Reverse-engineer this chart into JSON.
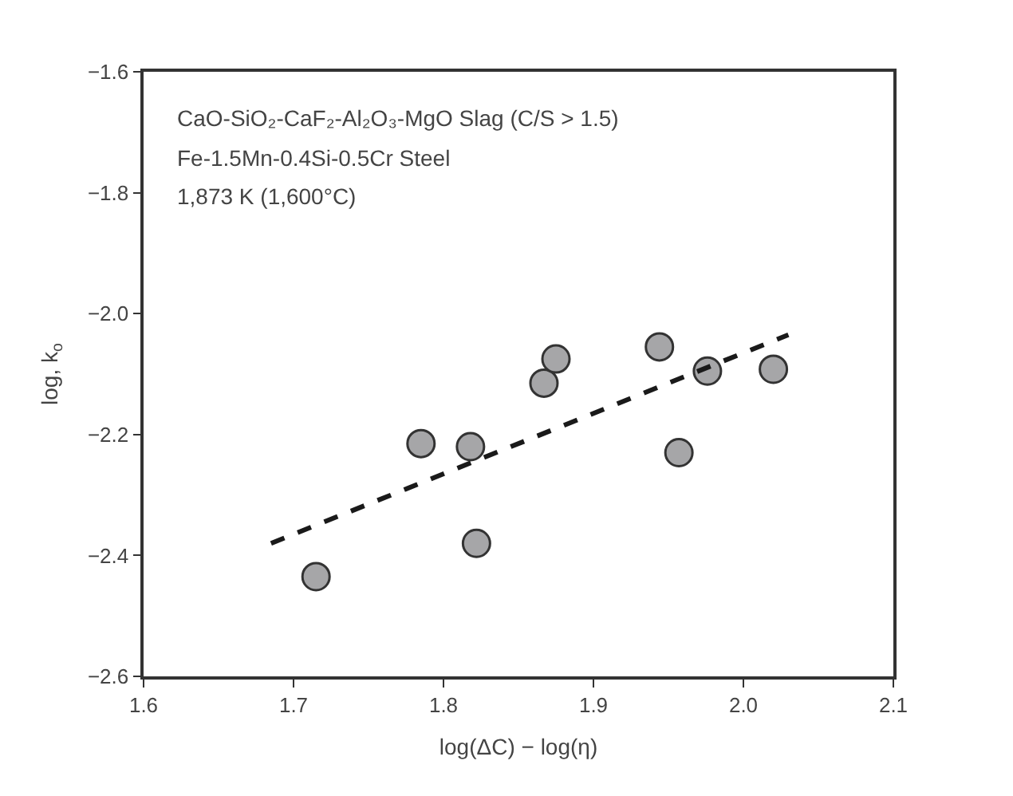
{
  "chart_data": {
    "type": "scatter",
    "xlabel": "log(ΔC) − log(η)",
    "ylabel": "log, k$_{o}$",
    "annotations": [
      "CaO-SiO₂-CaF₂-Al₂O₃-MgO Slag (C/S > 1.5)",
      "Fe-1.5Mn-0.4Si-0.5Cr Steel",
      "1,873 K (1,600°C)"
    ],
    "series": [
      {
        "color": "#a6a6a8",
        "marker": "circle",
        "x": [
          1.715,
          1.785,
          1.818,
          1.822,
          1.867,
          1.875,
          1.944,
          1.957,
          1.976,
          2.02
        ],
        "values": [
          -2.435,
          -2.215,
          -2.22,
          -2.38,
          -2.115,
          -2.075,
          -2.055,
          -2.23,
          -2.095,
          -2.092
        ]
      },
      {
        "type": "line",
        "color": "#1a1a1a",
        "line_style": "dashed",
        "marker": "none",
        "x": [
          1.685,
          2.03
        ],
        "values": [
          -2.38,
          -2.035
        ]
      }
    ],
    "xlim": [
      1.6,
      2.1
    ],
    "xticks": [
      1.6,
      1.7,
      1.8,
      1.9,
      {
        "value": 2.0,
        "label": "2.0"
      },
      2.1
    ],
    "ylim": [
      -2.6,
      -1.6
    ],
    "yticks": [
      -2.6,
      -2.4,
      -2.2,
      {
        "value": -2.0,
        "label": "−2.0"
      },
      -1.8,
      -1.6
    ]
  }
}
